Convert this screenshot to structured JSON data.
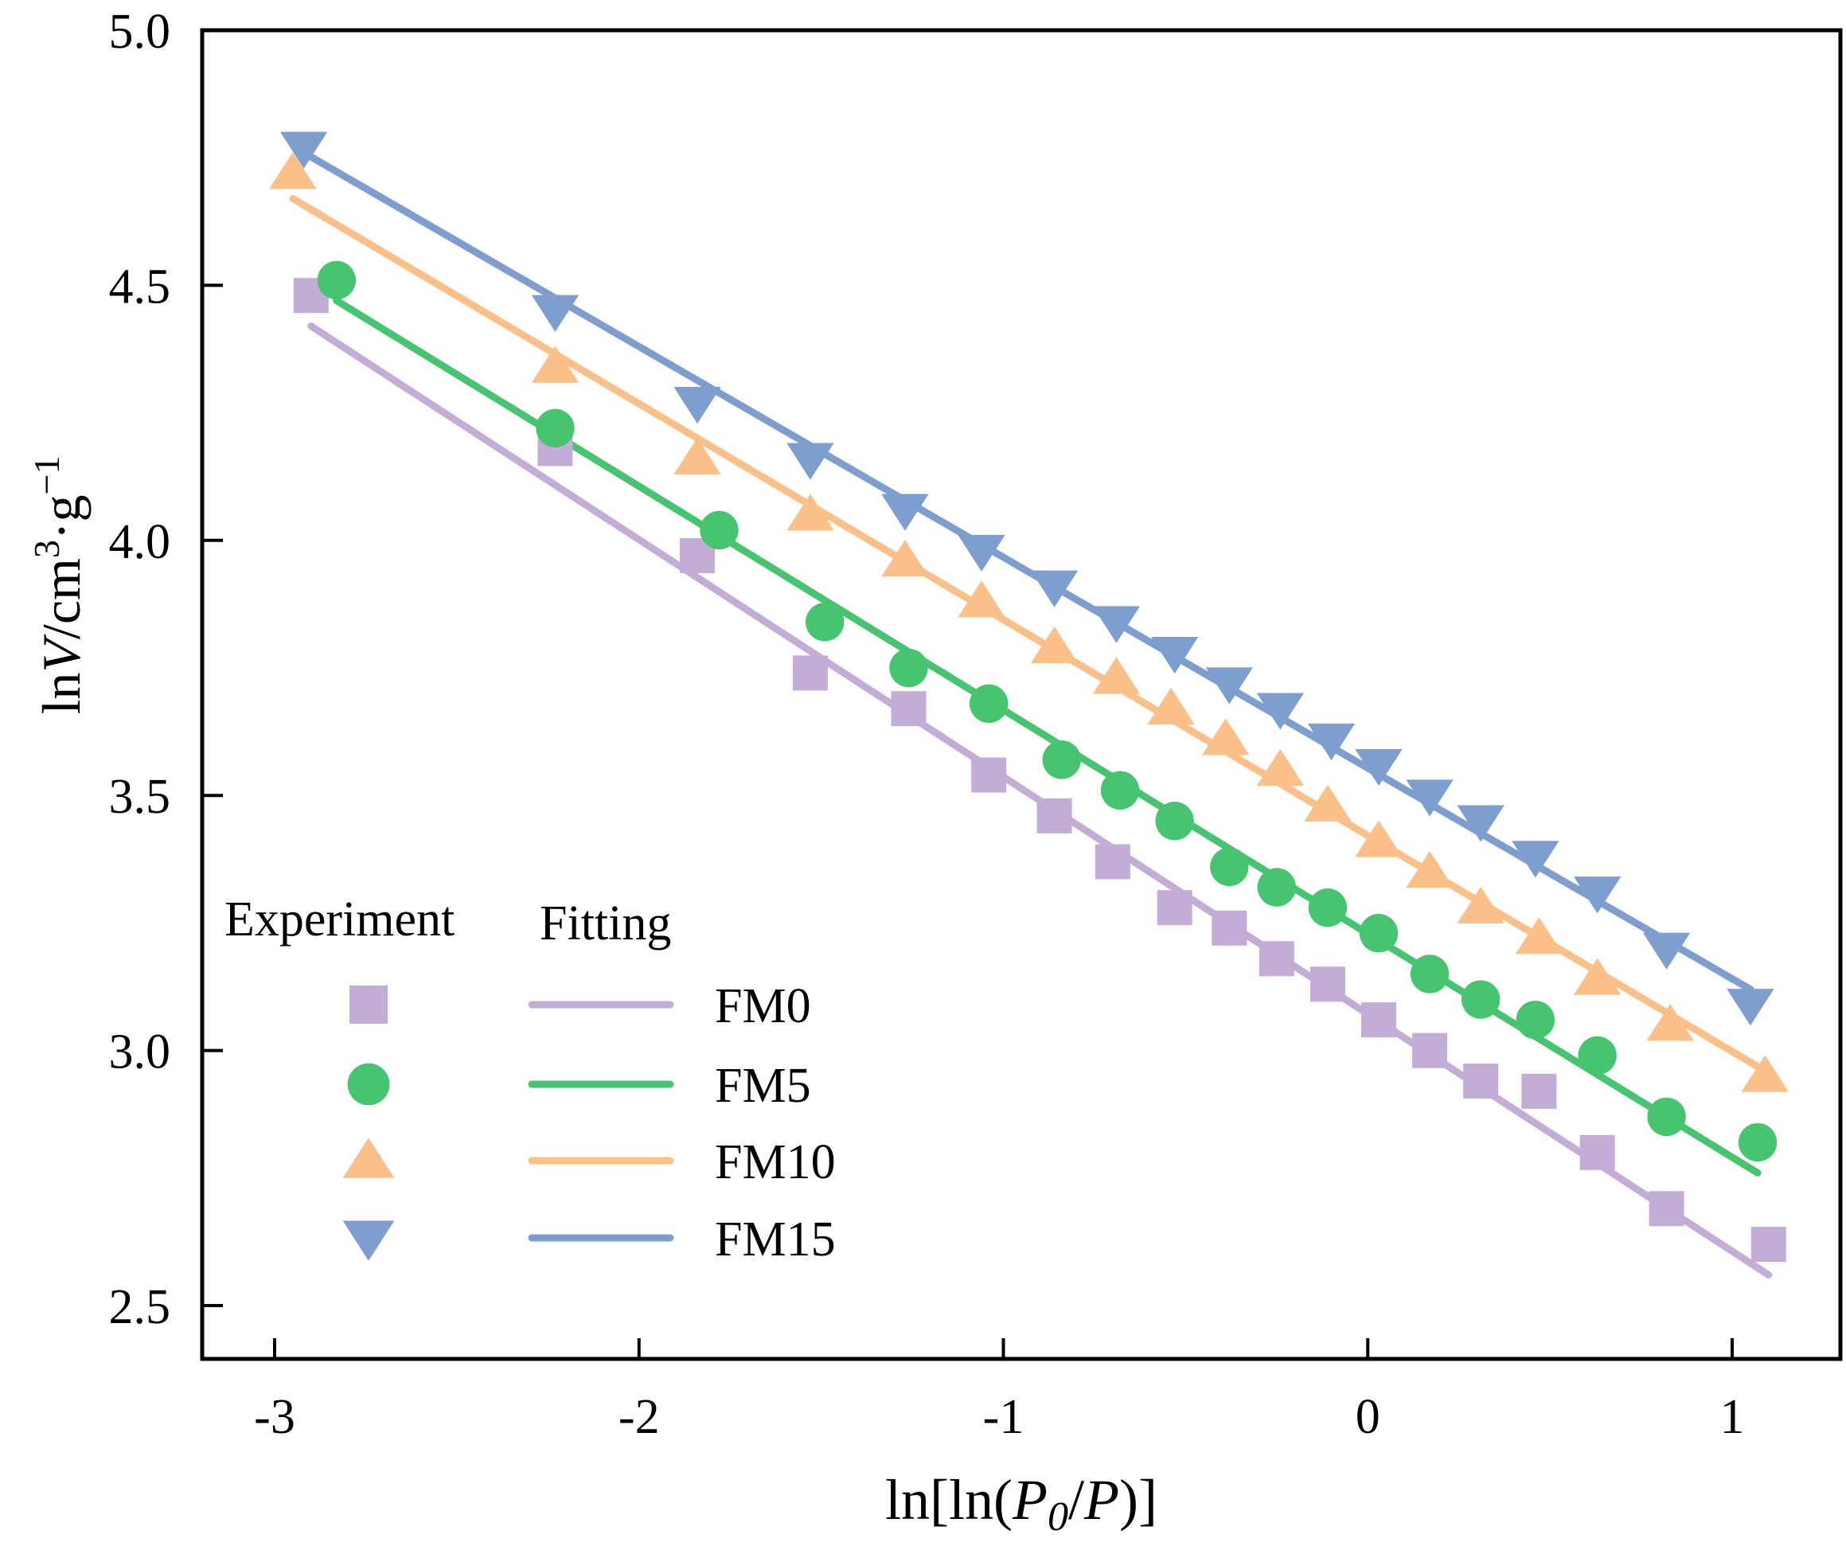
{
  "chart_data": {
    "type": "scatter",
    "xlabel_parts": [
      "ln[ln(",
      "P",
      "0",
      "/",
      "P",
      ")]"
    ],
    "ylabel_parts": [
      "ln",
      "V",
      "/cm",
      "3",
      "·g",
      "−1"
    ],
    "xlim": [
      -3.2,
      1.3
    ],
    "ylim": [
      2.4,
      5.0
    ],
    "xticks": [
      -3,
      -2,
      -1,
      0,
      1
    ],
    "xtick_labels": [
      "-3",
      "-2",
      "-1",
      "0",
      "1"
    ],
    "yticks": [
      2.5,
      3.0,
      3.5,
      4.0,
      4.5,
      5.0
    ],
    "ytick_labels": [
      "2.5",
      "3.0",
      "3.5",
      "4.0",
      "4.5",
      "5.0"
    ],
    "legend": {
      "experiment_header": "Experiment",
      "fitting_header": "Fitting",
      "position": "bottom-left"
    },
    "series": [
      {
        "name": "FM0",
        "marker": "square",
        "color": "#C3ACD6",
        "x": [
          -2.9,
          -2.23,
          -1.84,
          -1.53,
          -1.26,
          -1.04,
          -0.86,
          -0.7,
          -0.53,
          -0.38,
          -0.25,
          -0.11,
          0.03,
          0.17,
          0.31,
          0.47,
          0.63,
          0.82,
          1.1
        ],
        "y": [
          4.48,
          4.18,
          3.97,
          3.74,
          3.67,
          3.54,
          3.46,
          3.37,
          3.28,
          3.24,
          3.18,
          3.13,
          3.06,
          3.0,
          2.94,
          2.92,
          2.8,
          2.69,
          2.62
        ],
        "fit_x": [
          -2.9,
          1.1
        ],
        "fit_y": [
          4.42,
          2.56
        ]
      },
      {
        "name": "FM5",
        "marker": "circle",
        "color": "#47C46F",
        "x": [
          -2.83,
          -2.23,
          -1.78,
          -1.49,
          -1.26,
          -1.04,
          -0.84,
          -0.68,
          -0.53,
          -0.38,
          -0.25,
          -0.11,
          0.03,
          0.17,
          0.31,
          0.46,
          0.63,
          0.82,
          1.07
        ],
        "y": [
          4.51,
          4.22,
          4.02,
          3.84,
          3.75,
          3.68,
          3.57,
          3.51,
          3.45,
          3.36,
          3.32,
          3.28,
          3.23,
          3.15,
          3.1,
          3.06,
          2.99,
          2.87,
          2.82
        ],
        "fit_x": [
          -2.83,
          1.07
        ],
        "fit_y": [
          4.47,
          2.76
        ]
      },
      {
        "name": "FM10",
        "marker": "triangle-up",
        "color": "#FBBF88",
        "x": [
          -2.95,
          -2.23,
          -1.84,
          -1.53,
          -1.27,
          -1.06,
          -0.86,
          -0.69,
          -0.54,
          -0.39,
          -0.24,
          -0.11,
          0.03,
          0.17,
          0.31,
          0.47,
          0.63,
          0.83,
          1.09
        ],
        "y": [
          4.72,
          4.34,
          4.16,
          4.05,
          3.96,
          3.88,
          3.79,
          3.73,
          3.67,
          3.61,
          3.55,
          3.48,
          3.41,
          3.35,
          3.28,
          3.22,
          3.14,
          3.05,
          2.95
        ],
        "fit_x": [
          -2.95,
          1.09
        ],
        "fit_y": [
          4.67,
          2.96
        ]
      },
      {
        "name": "FM15",
        "marker": "triangle-down",
        "color": "#7F9ED0",
        "x": [
          -2.92,
          -2.23,
          -1.84,
          -1.53,
          -1.27,
          -1.06,
          -0.86,
          -0.69,
          -0.53,
          -0.38,
          -0.24,
          -0.1,
          0.03,
          0.17,
          0.31,
          0.46,
          0.63,
          0.82,
          1.05
        ],
        "y": [
          4.77,
          4.45,
          4.27,
          4.16,
          4.06,
          3.98,
          3.91,
          3.84,
          3.78,
          3.72,
          3.67,
          3.61,
          3.56,
          3.5,
          3.45,
          3.38,
          3.31,
          3.2,
          3.09
        ],
        "fit_x": [
          -2.92,
          1.05
        ],
        "fit_y": [
          4.76,
          3.12
        ]
      }
    ]
  }
}
